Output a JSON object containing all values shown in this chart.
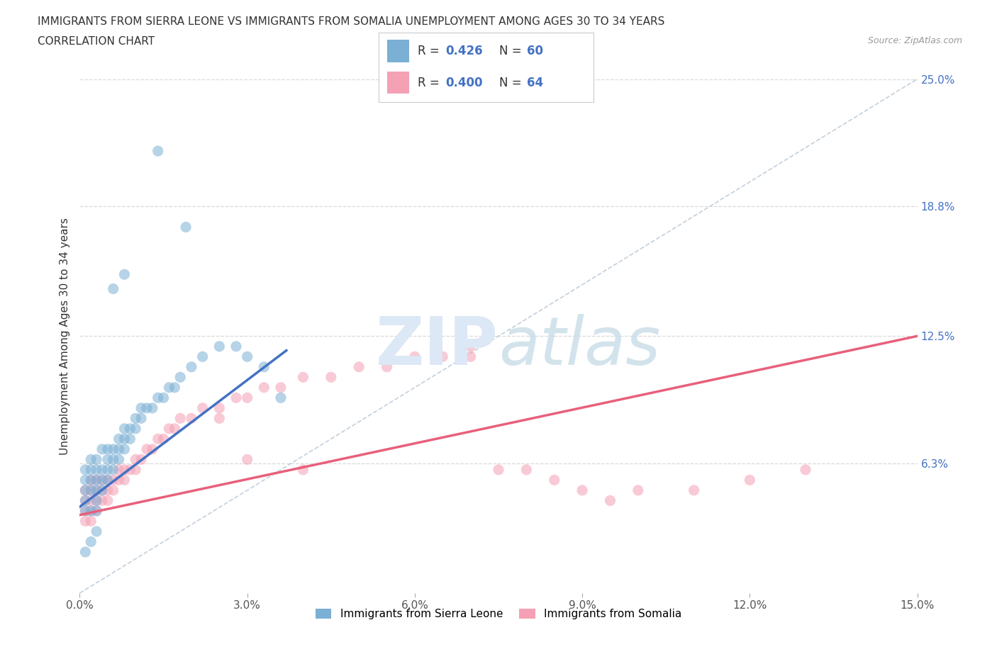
{
  "title_line1": "IMMIGRANTS FROM SIERRA LEONE VS IMMIGRANTS FROM SOMALIA UNEMPLOYMENT AMONG AGES 30 TO 34 YEARS",
  "title_line2": "CORRELATION CHART",
  "source_text": "Source: ZipAtlas.com",
  "ylabel": "Unemployment Among Ages 30 to 34 years",
  "legend_label1": "Immigrants from Sierra Leone",
  "legend_label2": "Immigrants from Somalia",
  "R1": "0.426",
  "N1": "60",
  "R2": "0.400",
  "N2": "64",
  "xlim": [
    0.0,
    0.15
  ],
  "ylim": [
    0.0,
    0.25
  ],
  "xticks": [
    0.0,
    0.03,
    0.06,
    0.09,
    0.12,
    0.15
  ],
  "xticklabels": [
    "0.0%",
    "3.0%",
    "6.0%",
    "9.0%",
    "12.0%",
    "15.0%"
  ],
  "yticks_right": [
    0.063,
    0.125,
    0.188,
    0.25
  ],
  "yticks_right_labels": [
    "6.3%",
    "12.5%",
    "18.8%",
    "25.0%"
  ],
  "color_sierra": "#7bafd4",
  "color_somalia": "#f4a0b5",
  "color_line_sierra": "#4472c4",
  "color_line_somalia": "#e8607a",
  "watermark_color": "#dce8f5",
  "background_color": "#ffffff",
  "grid_color": "#d8d8d8",
  "sl_line_x": [
    0.0,
    0.037
  ],
  "sl_line_y": [
    0.042,
    0.118
  ],
  "som_line_x": [
    0.0,
    0.15
  ],
  "som_line_y": [
    0.038,
    0.125
  ],
  "sl_x": [
    0.001,
    0.001,
    0.001,
    0.001,
    0.001,
    0.002,
    0.002,
    0.002,
    0.002,
    0.002,
    0.003,
    0.003,
    0.003,
    0.003,
    0.003,
    0.003,
    0.004,
    0.004,
    0.004,
    0.004,
    0.005,
    0.005,
    0.005,
    0.005,
    0.006,
    0.006,
    0.006,
    0.007,
    0.007,
    0.007,
    0.008,
    0.008,
    0.008,
    0.009,
    0.009,
    0.01,
    0.01,
    0.011,
    0.011,
    0.012,
    0.013,
    0.014,
    0.015,
    0.016,
    0.017,
    0.018,
    0.02,
    0.022,
    0.025,
    0.028,
    0.03,
    0.033,
    0.036,
    0.001,
    0.002,
    0.003,
    0.014,
    0.019,
    0.008,
    0.006
  ],
  "sl_y": [
    0.04,
    0.045,
    0.05,
    0.055,
    0.06,
    0.04,
    0.05,
    0.055,
    0.06,
    0.065,
    0.04,
    0.045,
    0.05,
    0.055,
    0.06,
    0.065,
    0.05,
    0.055,
    0.06,
    0.07,
    0.055,
    0.06,
    0.065,
    0.07,
    0.06,
    0.065,
    0.07,
    0.065,
    0.07,
    0.075,
    0.07,
    0.075,
    0.08,
    0.075,
    0.08,
    0.08,
    0.085,
    0.085,
    0.09,
    0.09,
    0.09,
    0.095,
    0.095,
    0.1,
    0.1,
    0.105,
    0.11,
    0.115,
    0.12,
    0.12,
    0.115,
    0.11,
    0.095,
    0.02,
    0.025,
    0.03,
    0.215,
    0.178,
    0.155,
    0.148
  ],
  "som_x": [
    0.001,
    0.001,
    0.001,
    0.001,
    0.002,
    0.002,
    0.002,
    0.002,
    0.002,
    0.003,
    0.003,
    0.003,
    0.003,
    0.004,
    0.004,
    0.004,
    0.005,
    0.005,
    0.005,
    0.006,
    0.006,
    0.007,
    0.007,
    0.008,
    0.008,
    0.009,
    0.01,
    0.01,
    0.011,
    0.012,
    0.013,
    0.014,
    0.015,
    0.016,
    0.017,
    0.018,
    0.02,
    0.022,
    0.025,
    0.028,
    0.03,
    0.033,
    0.036,
    0.04,
    0.045,
    0.05,
    0.055,
    0.06,
    0.065,
    0.07,
    0.075,
    0.08,
    0.085,
    0.09,
    0.095,
    0.1,
    0.11,
    0.12,
    0.13,
    0.025,
    0.03,
    0.04,
    0.055,
    0.07
  ],
  "som_y": [
    0.035,
    0.04,
    0.045,
    0.05,
    0.035,
    0.04,
    0.045,
    0.05,
    0.055,
    0.04,
    0.045,
    0.05,
    0.055,
    0.045,
    0.05,
    0.055,
    0.045,
    0.05,
    0.055,
    0.05,
    0.055,
    0.055,
    0.06,
    0.055,
    0.06,
    0.06,
    0.06,
    0.065,
    0.065,
    0.07,
    0.07,
    0.075,
    0.075,
    0.08,
    0.08,
    0.085,
    0.085,
    0.09,
    0.09,
    0.095,
    0.095,
    0.1,
    0.1,
    0.105,
    0.105,
    0.11,
    0.11,
    0.115,
    0.115,
    0.12,
    0.06,
    0.06,
    0.055,
    0.05,
    0.045,
    0.05,
    0.05,
    0.055,
    0.06,
    0.085,
    0.065,
    0.06,
    0.115,
    0.115
  ]
}
